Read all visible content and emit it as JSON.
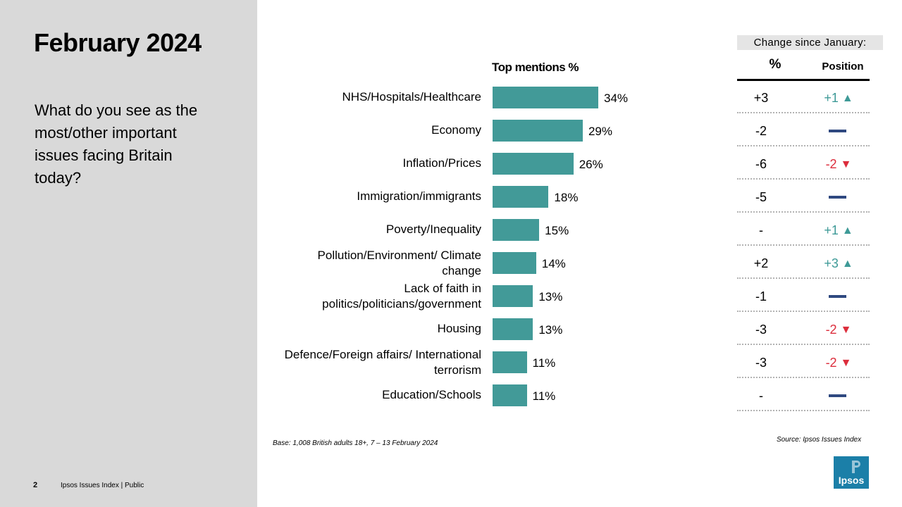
{
  "page": {
    "title": "February 2024",
    "question": "What do you see as the most/other important issues facing Britain today?",
    "page_number": "2",
    "footer": "Ipsos Issues Index | Public",
    "base_note": "Base: 1,008 British adults 18+, 7 – 13 February 2024",
    "source_note": "Source: Ipsos Issues Index",
    "logo_text": "Ipsos"
  },
  "change_table": {
    "header": "Change since January:",
    "col_pct": "%",
    "col_position": "Position",
    "rows": [
      {
        "change": "+3",
        "position": "+1",
        "direction": "up"
      },
      {
        "change": "-2",
        "position": "",
        "direction": "same"
      },
      {
        "change": "-6",
        "position": "-2",
        "direction": "down"
      },
      {
        "change": "-5",
        "position": "",
        "direction": "same"
      },
      {
        "change": "-",
        "position": "+1",
        "direction": "up"
      },
      {
        "change": "+2",
        "position": "+3",
        "direction": "up"
      },
      {
        "change": "-1",
        "position": "",
        "direction": "same"
      },
      {
        "change": "-3",
        "position": "-2",
        "direction": "down"
      },
      {
        "change": "-3",
        "position": "-2",
        "direction": "down"
      },
      {
        "change": "-",
        "position": "",
        "direction": "same"
      }
    ]
  },
  "colors": {
    "bar": "#429a98",
    "up": "#3e9a97",
    "down": "#dc2d3c",
    "same": "#2f4980"
  },
  "chart_data": {
    "type": "bar",
    "orientation": "horizontal",
    "title": "Top mentions %",
    "categories": [
      "NHS/Hospitals/Healthcare",
      "Economy",
      "Inflation/Prices",
      "Immigration/immigrants",
      "Poverty/Inequality",
      "Pollution/Environment/ Climate change",
      "Lack of faith in politics/politicians/government",
      "Housing",
      "Defence/Foreign affairs/ International terrorism",
      "Education/Schools"
    ],
    "values": [
      34,
      29,
      26,
      18,
      15,
      14,
      13,
      13,
      11,
      11
    ],
    "value_labels": [
      "34%",
      "29%",
      "26%",
      "18%",
      "15%",
      "14%",
      "13%",
      "13%",
      "11%",
      "11%"
    ],
    "xlim": [
      0,
      34
    ],
    "grid": false,
    "legend": "none"
  }
}
